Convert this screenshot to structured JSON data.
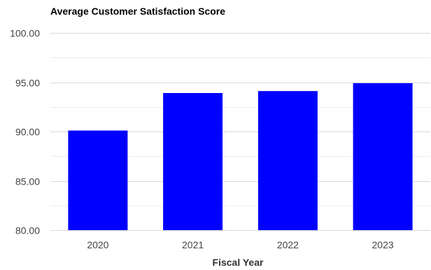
{
  "chart_data": {
    "type": "bar",
    "title": "Average Customer Satisfaction Score",
    "xlabel": "Fiscal Year",
    "ylabel": "",
    "categories": [
      "2020",
      "2021",
      "2022",
      "2023"
    ],
    "values": [
      90.1,
      93.9,
      94.1,
      94.9
    ],
    "ylim": [
      80,
      100
    ],
    "yticks": [
      80,
      85,
      90,
      95,
      100
    ],
    "ytick_labels": [
      "80.00",
      "85.00",
      "90.00",
      "95.00",
      "100.00"
    ],
    "minor_grid": true,
    "grid": true,
    "legend": "none",
    "colors": {
      "bar": "#0000ff",
      "grid_major": "#d9d9d9",
      "grid_minor": "#eeeeee",
      "axis_text": "#444444",
      "title_text": "#000000"
    }
  }
}
